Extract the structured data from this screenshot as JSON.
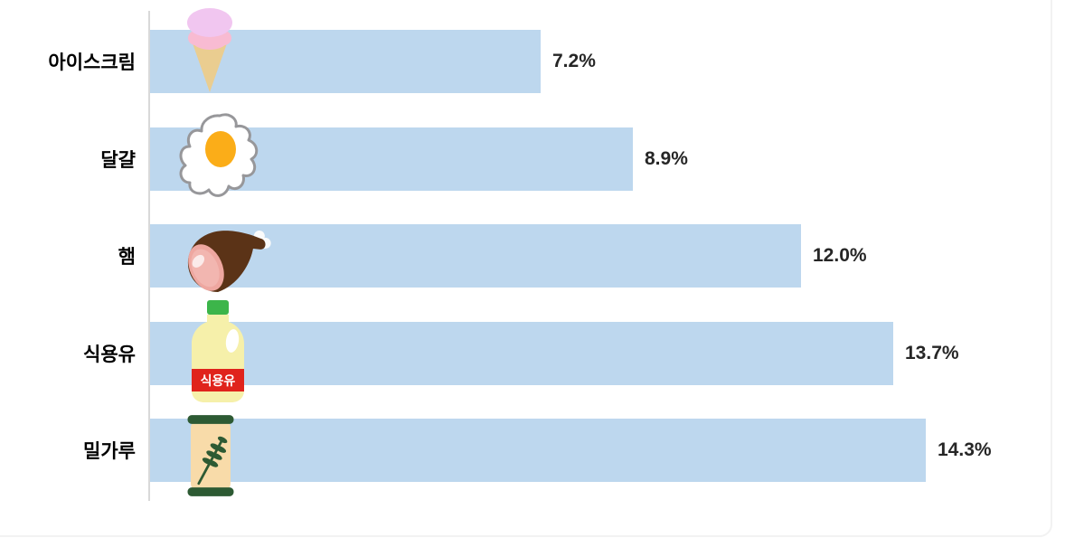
{
  "chart_data": {
    "type": "bar",
    "orientation": "horizontal",
    "title": "",
    "xlabel": "",
    "ylabel": "",
    "xlim": [
      0,
      14.3
    ],
    "grid": false,
    "legend": false,
    "bar_color": "#BDD7EE",
    "axis_line_color": "#D9D9D9",
    "value_label_color": "#262626",
    "category_label_color": "#000000",
    "frame_color": "#F2F2F2",
    "categories": [
      "아이스크림",
      "달걀",
      "햄",
      "식용유",
      "밀가루"
    ],
    "values": [
      7.2,
      8.9,
      12.0,
      13.7,
      14.3
    ],
    "items": [
      {
        "label": "아이스크림",
        "value": 7.2,
        "value_label": "7.2%",
        "icon": "ice-cream-icon"
      },
      {
        "label": "달걀",
        "value": 8.9,
        "value_label": "8.9%",
        "icon": "fried-egg-icon"
      },
      {
        "label": "햄",
        "value": 12.0,
        "value_label": "12.0%",
        "icon": "ham-icon"
      },
      {
        "label": "식용유",
        "value": 13.7,
        "value_label": "13.7%",
        "icon": "oil-bottle-icon",
        "icon_text": "식용유"
      },
      {
        "label": "밀가루",
        "value": 14.3,
        "value_label": "14.3%",
        "icon": "flour-sack-icon"
      }
    ]
  }
}
